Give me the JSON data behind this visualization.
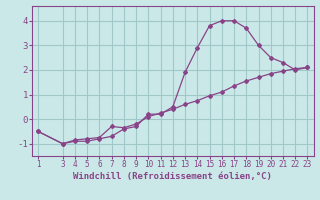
{
  "xlabel": "Windchill (Refroidissement éolien,°C)",
  "background_color": "#cbe8e8",
  "grid_color": "#a0c8c8",
  "line_color": "#884488",
  "x_values1": [
    1,
    3,
    4,
    5,
    6,
    7,
    8,
    9,
    10,
    11,
    12,
    13,
    14,
    15,
    16,
    17,
    18,
    19,
    20,
    21,
    22,
    23
  ],
  "y_values1": [
    -0.5,
    -1.0,
    -0.9,
    -0.9,
    -0.8,
    -0.7,
    -0.4,
    -0.3,
    0.2,
    0.2,
    0.5,
    1.9,
    2.9,
    3.8,
    4.0,
    4.0,
    3.7,
    3.0,
    2.5,
    2.3,
    2.0,
    2.1
  ],
  "x_values2": [
    1,
    3,
    4,
    5,
    6,
    7,
    8,
    9,
    10,
    11,
    12,
    13,
    14,
    15,
    16,
    17,
    18,
    19,
    20,
    21,
    22,
    23
  ],
  "y_values2": [
    -0.5,
    -1.0,
    -0.85,
    -0.8,
    -0.75,
    -0.3,
    -0.35,
    -0.2,
    0.1,
    0.25,
    0.4,
    0.6,
    0.75,
    0.95,
    1.1,
    1.35,
    1.55,
    1.7,
    1.85,
    1.95,
    2.05,
    2.1
  ],
  "ylim": [
    -1.5,
    4.6
  ],
  "xlim": [
    0.5,
    23.5
  ],
  "yticks": [
    -1,
    0,
    1,
    2,
    3,
    4
  ],
  "xticks": [
    1,
    3,
    4,
    5,
    6,
    7,
    8,
    9,
    10,
    11,
    12,
    13,
    14,
    15,
    16,
    17,
    18,
    19,
    20,
    21,
    22,
    23
  ],
  "tick_fontsize": 5.5,
  "ylabel_fontsize": 6.5,
  "xlabel_fontsize": 6.5
}
